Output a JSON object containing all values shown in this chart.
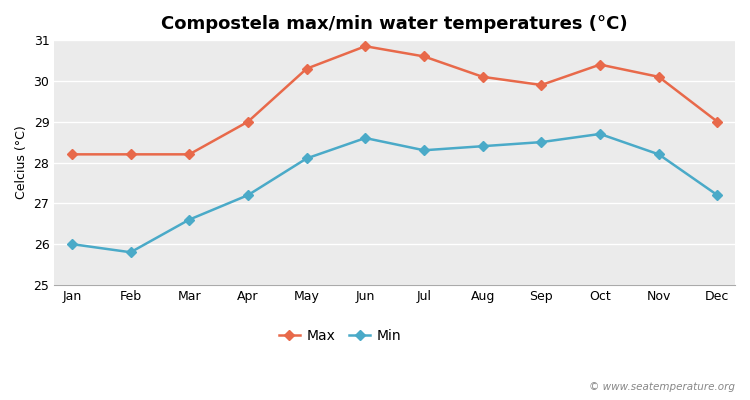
{
  "months": [
    "Jan",
    "Feb",
    "Mar",
    "Apr",
    "May",
    "Jun",
    "Jul",
    "Aug",
    "Sep",
    "Oct",
    "Nov",
    "Dec"
  ],
  "max_temps": [
    28.2,
    28.2,
    28.2,
    29.0,
    30.3,
    30.85,
    30.6,
    30.1,
    29.9,
    30.4,
    30.1,
    29.0
  ],
  "min_temps": [
    26.0,
    25.8,
    26.6,
    27.2,
    28.1,
    28.6,
    28.3,
    28.4,
    28.5,
    28.7,
    28.2,
    27.2
  ],
  "max_color": "#e8694a",
  "min_color": "#4aaac8",
  "title": "Compostela max/min water temperatures (°C)",
  "ylabel": "Celcius (°C)",
  "ylim": [
    25,
    31
  ],
  "yticks": [
    25,
    26,
    27,
    28,
    29,
    30,
    31
  ],
  "plot_bg_color": "#ebebeb",
  "fig_bg_color": "#ffffff",
  "grid_color": "#ffffff",
  "watermark": "© www.seatemperature.org",
  "legend_max": "Max",
  "legend_min": "Min",
  "title_fontsize": 13,
  "label_fontsize": 9,
  "tick_fontsize": 9
}
